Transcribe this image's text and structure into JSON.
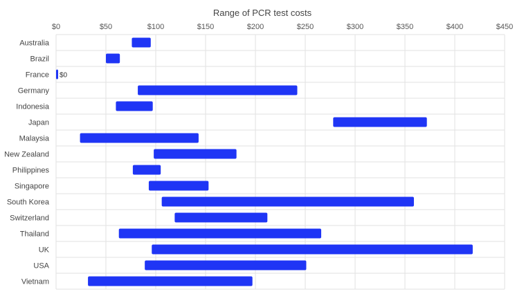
{
  "chart_data": {
    "type": "bar",
    "orientation": "horizontal-range",
    "title": "Range of PCR test costs",
    "xlabel": "",
    "ylabel": "",
    "x_axis_position": "top",
    "xlim": [
      0,
      450
    ],
    "x_ticks": [
      0,
      50,
      100,
      150,
      200,
      250,
      300,
      350,
      400,
      450
    ],
    "x_tick_labels": [
      "$0",
      "$50",
      "$100",
      "$150",
      "$200",
      "$250",
      "$300",
      "$350",
      "$400",
      "$450"
    ],
    "grid": true,
    "legend": "none",
    "bar_color": "#1f35f5",
    "categories": [
      "Australia",
      "Brazil",
      "France",
      "Germany",
      "Indonesia",
      "Japan",
      "Malaysia",
      "New Zealand",
      "Philippines",
      "Singapore",
      "South Korea",
      "Switzerland",
      "Thailand",
      "UK",
      "USA",
      "Vietnam"
    ],
    "ranges": [
      [
        76,
        95
      ],
      [
        50,
        64
      ],
      [
        0,
        0
      ],
      [
        82,
        242
      ],
      [
        60,
        97
      ],
      [
        278,
        372
      ],
      [
        24,
        143
      ],
      [
        98,
        181
      ],
      [
        77,
        105
      ],
      [
        93,
        153
      ],
      [
        106,
        359
      ],
      [
        119,
        212
      ],
      [
        63,
        266
      ],
      [
        96,
        418
      ],
      [
        89,
        251
      ],
      [
        32,
        197
      ]
    ],
    "annotations": [
      {
        "category": "France",
        "text": "$0"
      }
    ]
  }
}
